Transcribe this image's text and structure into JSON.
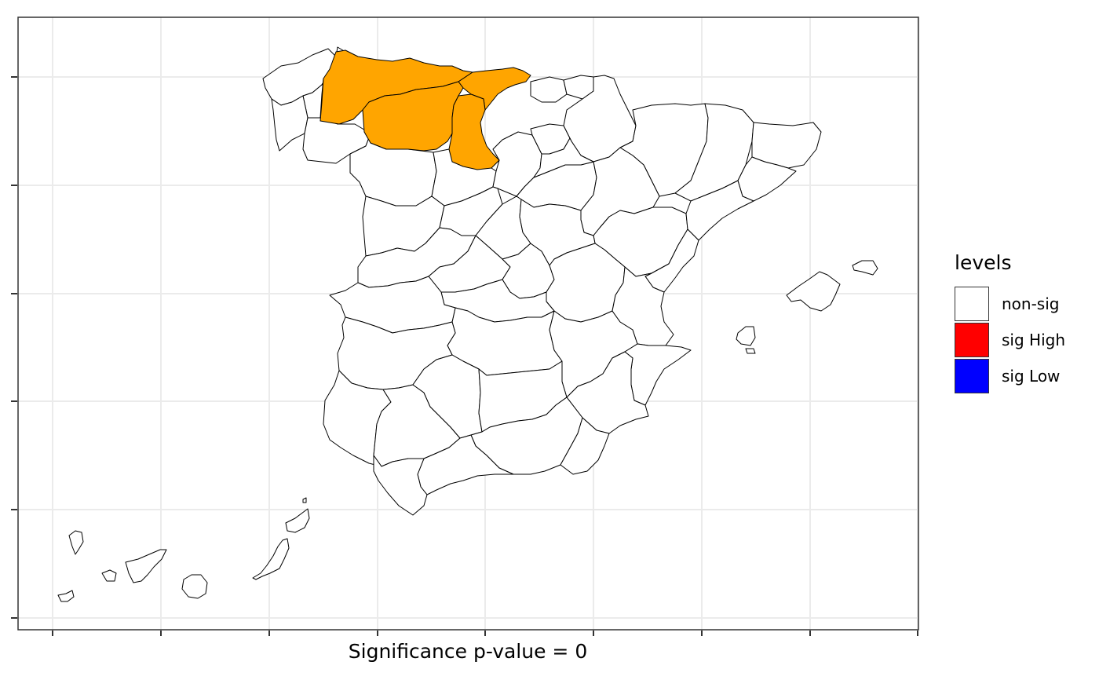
{
  "map": {
    "region": "Spain",
    "divisions": "provinces",
    "fill_map": {
      "default": "non-sig",
      "highlighted": [
        "highlight"
      ]
    }
  },
  "xlabel": "Significance p-value = 0",
  "legend": {
    "title": "levels",
    "position": "right",
    "entries": [
      {
        "label": "non-sig",
        "color": "#ffffff"
      },
      {
        "label": "sig High",
        "color": "#ff0000"
      },
      {
        "label": "sig Low",
        "color": "#0000ff"
      }
    ]
  },
  "colors": {
    "highlight": "#ffa500",
    "panel_border": "#333333",
    "grid": "#ebebeb",
    "province_border": "#000000"
  },
  "grid": true
}
